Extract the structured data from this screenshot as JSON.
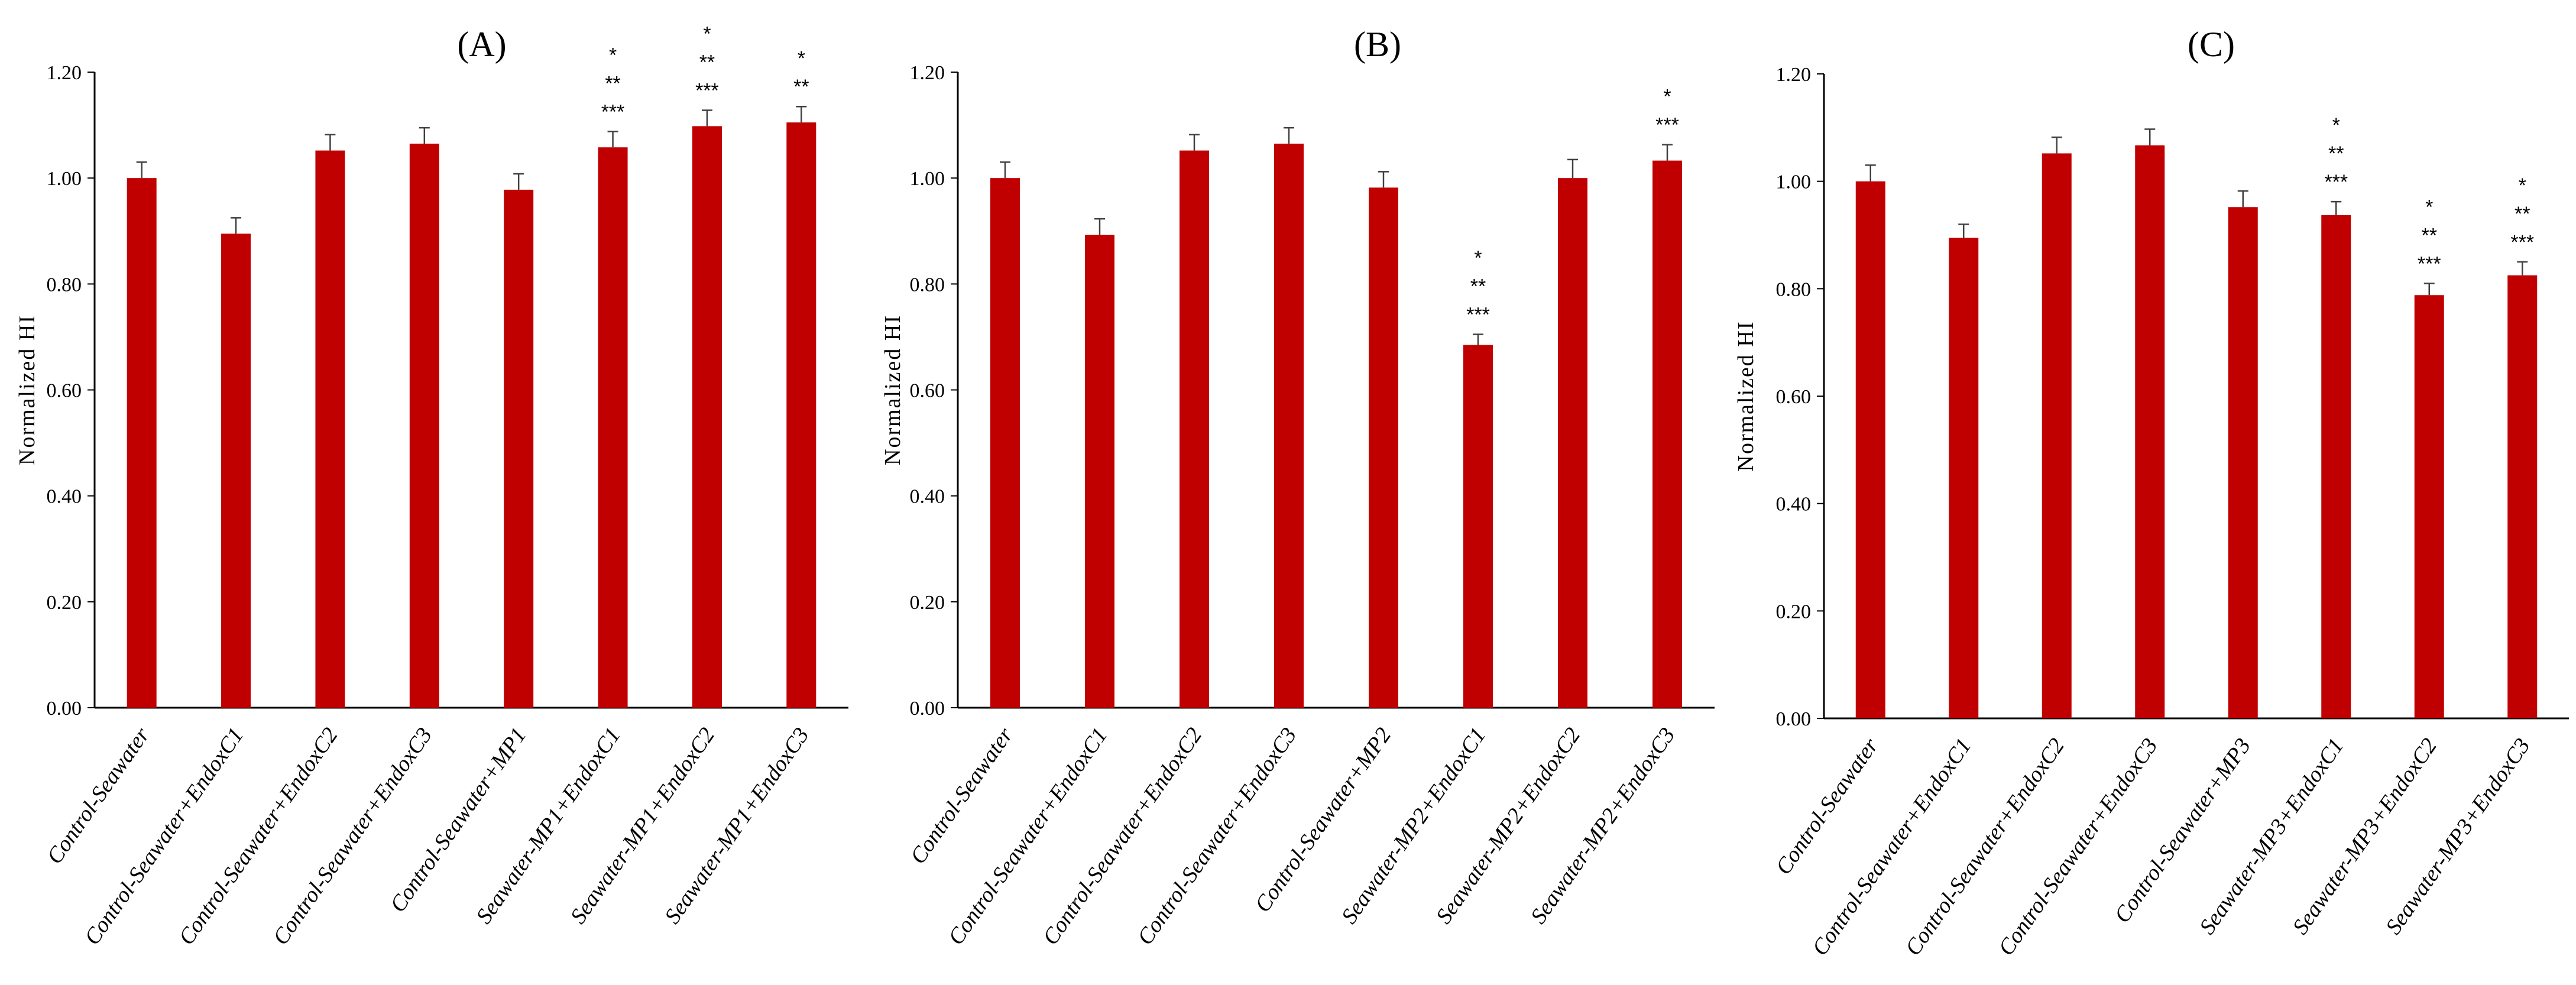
{
  "chart_data": [
    {
      "type": "bar",
      "title": "(A)",
      "ylabel": "Normalized HI",
      "xlabel": "",
      "ylim": [
        0,
        1.2
      ],
      "yticks": [
        "0.00",
        "0.20",
        "0.40",
        "0.60",
        "0.80",
        "1.00",
        "1.20"
      ],
      "bar_color": "#C00000",
      "categories": [
        "Control-Seawater",
        "Control-Seawater+EndoxC1",
        "Control-Seawater+EndoxC2",
        "Control-Seawater+EndoxC3",
        "Control-Seawater+MP1",
        "Seawater-MP1+EndoxC1",
        "Seawater-MP1+EndoxC2",
        "Seawater-MP1+EndoxC3"
      ],
      "values": [
        1.0,
        0.895,
        1.052,
        1.065,
        0.978,
        1.058,
        1.098,
        1.105
      ],
      "errors": [
        0.03,
        0.03,
        0.03,
        0.03,
        0.03,
        0.03,
        0.03,
        0.03
      ],
      "significance": [
        [],
        [],
        [],
        [],
        [],
        [
          "*",
          "**",
          "***"
        ],
        [
          "*",
          "**",
          "***"
        ],
        [
          "*",
          "**"
        ]
      ]
    },
    {
      "type": "bar",
      "title": "(B)",
      "ylabel": "Normalized HI",
      "xlabel": "",
      "ylim": [
        0,
        1.2
      ],
      "yticks": [
        "0.00",
        "0.20",
        "0.40",
        "0.60",
        "0.80",
        "1.00",
        "1.20"
      ],
      "bar_color": "#C00000",
      "categories": [
        "Control-Seawater",
        "Control-Seawater+EndoxC1",
        "Control-Seawater+EndoxC2",
        "Control-Seawater+EndoxC3",
        "Control-Seawater+MP2",
        "Seawater-MP2+EndoxC1",
        "Seawater-MP2+EndoxC2",
        "Seawater-MP2+EndoxC3"
      ],
      "values": [
        1.0,
        0.893,
        1.052,
        1.065,
        0.982,
        0.685,
        1.0,
        1.033
      ],
      "errors": [
        0.03,
        0.03,
        0.03,
        0.03,
        0.03,
        0.02,
        0.035,
        0.03
      ],
      "significance": [
        [],
        [],
        [],
        [],
        [],
        [
          "*",
          "**",
          "***"
        ],
        [],
        [
          "*",
          "***"
        ]
      ]
    },
    {
      "type": "bar",
      "title": "(C)",
      "ylabel": "Normalized HI",
      "xlabel": "",
      "ylim": [
        0,
        1.2
      ],
      "yticks": [
        "0.00",
        "0.20",
        "0.40",
        "0.60",
        "0.80",
        "1.00",
        "1.20"
      ],
      "bar_color": "#C00000",
      "categories": [
        "Control-Seawater",
        "Control-Seawater+EndoxC1",
        "Control-Seawater+EndoxC2",
        "Control-Seawater+EndoxC3",
        "Control-Seawater+MP3",
        "Seawater-MP3+EndoxC1",
        "Seawater-MP3+EndoxC2",
        "Seawater-MP3+EndoxC3"
      ],
      "values": [
        1.0,
        0.895,
        1.052,
        1.067,
        0.952,
        0.937,
        0.788,
        0.825
      ],
      "errors": [
        0.03,
        0.025,
        0.03,
        0.03,
        0.03,
        0.025,
        0.022,
        0.025
      ],
      "significance": [
        [],
        [],
        [],
        [],
        [],
        [
          "*",
          "**",
          "***"
        ],
        [
          "*",
          "**",
          "***"
        ],
        [
          "*",
          "**",
          "***"
        ]
      ]
    }
  ]
}
